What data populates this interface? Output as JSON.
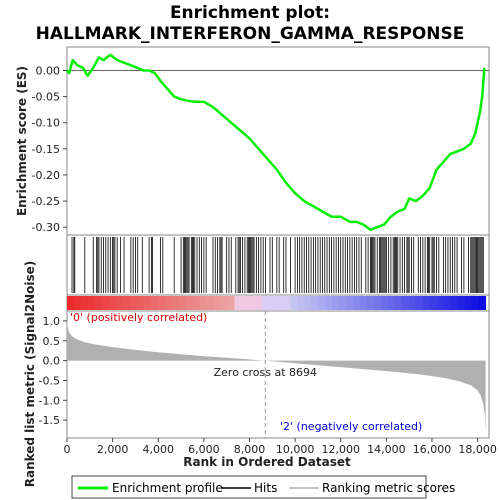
{
  "chart_data": [
    {
      "type": "line",
      "title_line1": "Enrichment plot:",
      "title_line2": "HALLMARK_INTERFERON_GAMMA_RESPONSE",
      "ylabel": "Enrichment score (ES)",
      "xlim": [
        0,
        18500
      ],
      "ylim": [
        -0.315,
        0.045
      ],
      "yticks": [
        0.0,
        -0.05,
        -0.1,
        -0.15,
        -0.2,
        -0.25,
        -0.3
      ],
      "ytick_labels": [
        "0.00",
        "-0.05",
        "-0.10",
        "-0.15",
        "-0.20",
        "-0.25",
        "-0.30"
      ],
      "series": [
        {
          "name": "Enrichment profile",
          "color": "#00ee00",
          "x": [
            0,
            100,
            250,
            450,
            700,
            900,
            1150,
            1400,
            1600,
            1900,
            2200,
            2500,
            2800,
            3100,
            3350,
            3600,
            3850,
            4100,
            4400,
            4700,
            5000,
            5300,
            5600,
            6000,
            6400,
            6800,
            7200,
            7600,
            8000,
            8400,
            8800,
            9200,
            9600,
            10000,
            10400,
            10800,
            11200,
            11600,
            12000,
            12400,
            12700,
            13000,
            13300,
            13600,
            13900,
            14200,
            14500,
            14800,
            15000,
            15300,
            15600,
            15900,
            16200,
            16500,
            16800,
            17100,
            17400,
            17700,
            17900,
            18100,
            18200,
            18300
          ],
          "values": [
            0.0,
            -0.005,
            0.02,
            0.01,
            0.005,
            -0.01,
            0.005,
            0.025,
            0.02,
            0.03,
            0.02,
            0.015,
            0.01,
            0.005,
            0.0,
            0.0,
            -0.005,
            -0.02,
            -0.035,
            -0.05,
            -0.055,
            -0.058,
            -0.06,
            -0.06,
            -0.07,
            -0.085,
            -0.1,
            -0.115,
            -0.13,
            -0.15,
            -0.17,
            -0.19,
            -0.215,
            -0.235,
            -0.25,
            -0.26,
            -0.27,
            -0.28,
            -0.28,
            -0.29,
            -0.29,
            -0.295,
            -0.305,
            -0.3,
            -0.295,
            -0.28,
            -0.27,
            -0.265,
            -0.245,
            -0.25,
            -0.24,
            -0.225,
            -0.19,
            -0.175,
            -0.16,
            -0.155,
            -0.15,
            -0.14,
            -0.12,
            -0.08,
            -0.05,
            0.005
          ]
        }
      ]
    },
    {
      "type": "barcode",
      "legend_name": "Hits",
      "xlim": [
        0,
        18500
      ],
      "hits": [
        220,
        300,
        340,
        780,
        1150,
        1300,
        1350,
        1400,
        1500,
        1600,
        1700,
        1800,
        1900,
        2000,
        2050,
        2100,
        2200,
        2350,
        2500,
        2800,
        2900,
        3000,
        3100,
        3300,
        3600,
        3700,
        3750,
        4100,
        4200,
        4700,
        5000,
        5100,
        5150,
        5200,
        5250,
        5300,
        5350,
        5450,
        5500,
        5550,
        5600,
        5700,
        5800,
        5900,
        6000,
        6100,
        6400,
        6500,
        6600,
        6700,
        6750,
        6800,
        7000,
        7100,
        7200,
        7400,
        7500,
        7550,
        7600,
        7700,
        7800,
        7900,
        7950,
        8000,
        8050,
        8100,
        8150,
        8200,
        8300,
        8400,
        8500,
        8600,
        8700,
        8900,
        9000,
        9200,
        9300,
        9500,
        9600,
        9800,
        10000,
        10100,
        10200,
        10300,
        10400,
        10500,
        10600,
        10700,
        10800,
        10900,
        11000,
        11100,
        11200,
        11300,
        11400,
        11500,
        11600,
        11700,
        11800,
        11900,
        12000,
        12100,
        12200,
        12300,
        12400,
        12500,
        12600,
        12700,
        12800,
        12900,
        13100,
        13200,
        13300,
        13350,
        13400,
        13450,
        13500,
        13600,
        13700,
        13750,
        13800,
        13850,
        13900,
        13950,
        14000,
        14100,
        14200,
        14300,
        14350,
        14400,
        14450,
        14500,
        14600,
        14700,
        14800,
        14900,
        14950,
        15000,
        15100,
        15200,
        15400,
        15500,
        15600,
        15700,
        15800,
        15850,
        15900,
        16000,
        16050,
        16100,
        16200,
        16300,
        16500,
        16600,
        16700,
        16800,
        16900,
        17000,
        17100,
        17300,
        17400,
        17600,
        17700,
        17750,
        17800,
        17850,
        17900,
        17950,
        18000,
        18050,
        18100,
        18150,
        18200,
        18250
      ]
    },
    {
      "type": "area",
      "ylabel": "Ranked list metric (Signal2Noise)",
      "xlabel": "Rank in Ordered Dataset",
      "xlim": [
        0,
        18500
      ],
      "ylim": [
        -1.95,
        1.25
      ],
      "xticks": [
        0,
        2000,
        4000,
        6000,
        8000,
        10000,
        12000,
        14000,
        16000,
        18000
      ],
      "xtick_labels": [
        "0",
        "2,000",
        "4,000",
        "6,000",
        "8,000",
        "10,000",
        "12,000",
        "14,000",
        "16,000",
        "18,000"
      ],
      "yticks": [
        1.0,
        0.5,
        0.0,
        -0.5,
        -1.0,
        -1.5
      ],
      "ytick_labels": [
        "1.0",
        "0.5",
        "0.0",
        "-0.5",
        "-1.0",
        "-1.5"
      ],
      "series": [
        {
          "name": "Ranking metric scores",
          "color": "#b0b0b0",
          "x": [
            0,
            30,
            100,
            250,
            500,
            800,
            1200,
            2000,
            3000,
            4000,
            5000,
            6000,
            7000,
            8000,
            8694,
            9500,
            10500,
            11500,
            12500,
            13500,
            14500,
            15500,
            16500,
            17200,
            17700,
            18000,
            18150,
            18250,
            18320,
            18350
          ],
          "values": [
            1.1,
            0.85,
            0.7,
            0.6,
            0.52,
            0.46,
            0.41,
            0.34,
            0.27,
            0.21,
            0.16,
            0.11,
            0.07,
            0.03,
            0.0,
            -0.04,
            -0.09,
            -0.14,
            -0.19,
            -0.24,
            -0.29,
            -0.35,
            -0.43,
            -0.52,
            -0.62,
            -0.75,
            -0.9,
            -1.1,
            -1.4,
            -1.75
          ]
        }
      ],
      "zero_cross_label": "Zero cross at 8694",
      "zero_cross_x": 8694,
      "pos_label": "'0' (positively correlated)",
      "neg_label": "'2' (negatively correlated)",
      "pos_color": "#dd0000",
      "neg_color": "#0000dd"
    }
  ],
  "legend": {
    "items": [
      {
        "label": "Enrichment profile",
        "color": "#00ee00"
      },
      {
        "label": "Hits",
        "color": "#000000"
      },
      {
        "label": "Ranking metric scores",
        "color": "#b0b0b0"
      }
    ]
  }
}
